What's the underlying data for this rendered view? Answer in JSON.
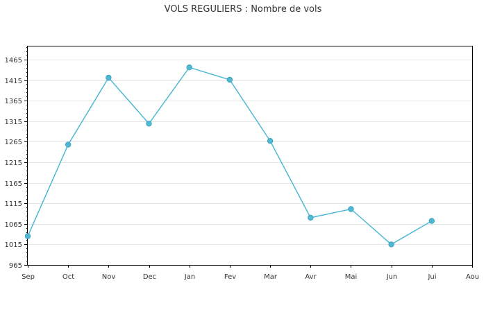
{
  "chart_data": {
    "type": "line",
    "title": "VOLS REGULIERS : Nombre de vols",
    "xlabel": "",
    "ylabel": "",
    "categories": [
      "Sep",
      "Oct",
      "Nov",
      "Dec",
      "Jan",
      "Fev",
      "Mar",
      "Avr",
      "Mai",
      "Jun",
      "Jui",
      "Aou"
    ],
    "series": [
      {
        "values": [
          1035,
          1258,
          1421,
          1309,
          1446,
          1416,
          1267,
          1080,
          1101,
          1015,
          1072,
          null
        ]
      }
    ],
    "ylim": [
      965,
      1497
    ],
    "yticks": [
      965,
      1015,
      1065,
      1115,
      1165,
      1215,
      1265,
      1315,
      1365,
      1415,
      1465
    ],
    "grid": true,
    "line_color": "#4fb8d3",
    "marker_color": "#4fb8d3"
  }
}
